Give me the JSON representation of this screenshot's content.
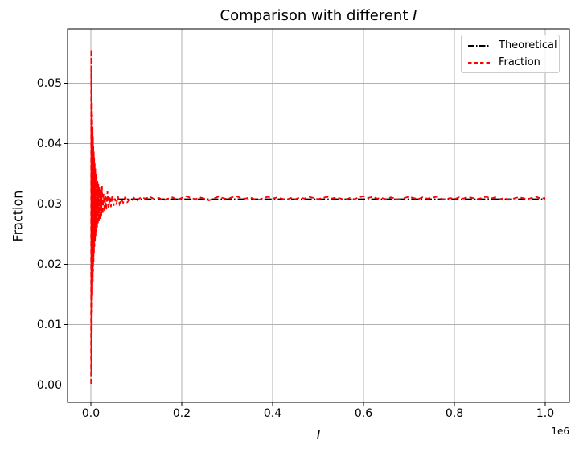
{
  "figure": {
    "title": {
      "prefix": "Comparison with different ",
      "math": "I"
    },
    "xlabel_math": "I",
    "ylabel": "Fraction",
    "offset_text": "1e6"
  },
  "legend": {
    "position": "upper right",
    "items": [
      {
        "label": "Theoretical",
        "color": "#000000",
        "linestyle": "dashdot"
      },
      {
        "label": "Fraction",
        "color": "#ff0000",
        "linestyle": "dashed"
      }
    ]
  },
  "chart_data": {
    "type": "line",
    "title": "Comparison with different I",
    "xlabel": "I",
    "ylabel": "Fraction",
    "x_offset_factor": "1e6",
    "grid": true,
    "grid_color": "#b0b0b0",
    "background": "#ffffff",
    "spine_color": "#000000",
    "legend_position": "upper right",
    "xlim": [
      -51300,
      1053100
    ],
    "ylim": [
      -0.002866,
      0.059
    ],
    "xticks": {
      "values": [
        0,
        200000,
        400000,
        600000,
        800000,
        1000000
      ],
      "labels": [
        "0.0",
        "0.2",
        "0.4",
        "0.6",
        "0.8",
        "1.0"
      ]
    },
    "yticks": {
      "values": [
        0.0,
        0.01,
        0.02,
        0.03,
        0.04,
        0.05
      ],
      "labels": [
        "0.00",
        "0.01",
        "0.02",
        "0.03",
        "0.04",
        "0.05"
      ]
    },
    "series": [
      {
        "name": "Theoretical",
        "color": "#000000",
        "linestyle": "dashdot",
        "linewidth": 1.7,
        "points": [
          [
            0,
            0.0308
          ],
          [
            1000000,
            0.0308
          ]
        ]
      },
      {
        "name": "Fraction",
        "color": "#ff0000",
        "linestyle": "dashed",
        "linewidth": 1.8,
        "points": [
          [
            400,
            0.0002
          ],
          [
            700,
            0.0556
          ],
          [
            1000,
            0.0015
          ],
          [
            1300,
            0.052
          ],
          [
            1600,
            0.0045
          ],
          [
            1900,
            0.0495
          ],
          [
            2200,
            0.0085
          ],
          [
            2500,
            0.0468
          ],
          [
            2800,
            0.012
          ],
          [
            3100,
            0.0448
          ],
          [
            3500,
            0.0148
          ],
          [
            3900,
            0.0428
          ],
          [
            4300,
            0.017
          ],
          [
            4700,
            0.0412
          ],
          [
            5100,
            0.0188
          ],
          [
            5500,
            0.0398
          ],
          [
            6000,
            0.0204
          ],
          [
            6500,
            0.0387
          ],
          [
            7000,
            0.0218
          ],
          [
            7500,
            0.0377
          ],
          [
            8000,
            0.0229
          ],
          [
            8600,
            0.0367
          ],
          [
            9200,
            0.0239
          ],
          [
            9800,
            0.0359
          ],
          [
            10500,
            0.0247
          ],
          [
            11200,
            0.0351
          ],
          [
            12000,
            0.0254
          ],
          [
            12800,
            0.0344
          ],
          [
            13700,
            0.0261
          ],
          [
            14600,
            0.0338
          ],
          [
            15600,
            0.0266
          ],
          [
            16600,
            0.0333
          ],
          [
            17700,
            0.0271
          ],
          [
            18800,
            0.0328
          ],
          [
            20000,
            0.0275
          ],
          [
            21500,
            0.0324
          ],
          [
            23000,
            0.0279
          ],
          [
            24500,
            0.033
          ],
          [
            26000,
            0.0283
          ],
          [
            28000,
            0.0317
          ],
          [
            30000,
            0.0287
          ],
          [
            32000,
            0.0314
          ],
          [
            34000,
            0.029
          ],
          [
            36500,
            0.0321
          ],
          [
            39000,
            0.0293
          ],
          [
            41500,
            0.0311
          ],
          [
            44000,
            0.0295
          ],
          [
            47000,
            0.0315
          ],
          [
            50000,
            0.0297
          ],
          [
            53000,
            0.0309
          ],
          [
            56000,
            0.0299
          ],
          [
            59500,
            0.0313
          ],
          [
            63000,
            0.03
          ],
          [
            67000,
            0.0308
          ],
          [
            71000,
            0.0302
          ],
          [
            75500,
            0.0312
          ],
          [
            80000,
            0.0303
          ],
          [
            85000,
            0.0307
          ],
          [
            90000,
            0.0304
          ],
          [
            95000,
            0.031
          ],
          [
            100000,
            0.0305
          ],
          [
            110000,
            0.0311
          ],
          [
            120000,
            0.0309
          ],
          [
            130000,
            0.0312
          ],
          [
            140000,
            0.0308
          ],
          [
            150000,
            0.031
          ],
          [
            160000,
            0.0306
          ],
          [
            170000,
            0.0309
          ],
          [
            180000,
            0.0311
          ],
          [
            190000,
            0.0307
          ],
          [
            200000,
            0.031
          ],
          [
            210000,
            0.0313
          ],
          [
            220000,
            0.031
          ],
          [
            230000,
            0.0308
          ],
          [
            240000,
            0.0311
          ],
          [
            250000,
            0.0309
          ],
          [
            260000,
            0.0306
          ],
          [
            270000,
            0.0309
          ],
          [
            280000,
            0.0312
          ],
          [
            290000,
            0.031
          ],
          [
            300000,
            0.0308
          ],
          [
            310000,
            0.0311
          ],
          [
            320000,
            0.0313
          ],
          [
            330000,
            0.031
          ],
          [
            340000,
            0.0309
          ],
          [
            350000,
            0.0311
          ],
          [
            360000,
            0.0308
          ],
          [
            370000,
            0.0307
          ],
          [
            380000,
            0.031
          ],
          [
            390000,
            0.0312
          ],
          [
            400000,
            0.0309
          ],
          [
            410000,
            0.0311
          ],
          [
            420000,
            0.0309
          ],
          [
            430000,
            0.0307
          ],
          [
            440000,
            0.031
          ],
          [
            450000,
            0.0308
          ],
          [
            460000,
            0.0311
          ],
          [
            470000,
            0.0309
          ],
          [
            480000,
            0.0312
          ],
          [
            490000,
            0.031
          ],
          [
            500000,
            0.0308
          ],
          [
            510000,
            0.031
          ],
          [
            520000,
            0.0312
          ],
          [
            530000,
            0.0309
          ],
          [
            540000,
            0.0311
          ],
          [
            550000,
            0.0309
          ],
          [
            560000,
            0.0307
          ],
          [
            570000,
            0.031
          ],
          [
            580000,
            0.0308
          ],
          [
            590000,
            0.0311
          ],
          [
            600000,
            0.0313
          ],
          [
            610000,
            0.031
          ],
          [
            620000,
            0.0312
          ],
          [
            630000,
            0.0309
          ],
          [
            640000,
            0.031
          ],
          [
            650000,
            0.0308
          ],
          [
            660000,
            0.0311
          ],
          [
            670000,
            0.0309
          ],
          [
            680000,
            0.0307
          ],
          [
            690000,
            0.031
          ],
          [
            700000,
            0.0312
          ],
          [
            710000,
            0.031
          ],
          [
            720000,
            0.0308
          ],
          [
            730000,
            0.0311
          ],
          [
            740000,
            0.0309
          ],
          [
            750000,
            0.031
          ],
          [
            760000,
            0.0312
          ],
          [
            770000,
            0.0309
          ],
          [
            780000,
            0.0307
          ],
          [
            790000,
            0.031
          ],
          [
            800000,
            0.0308
          ],
          [
            810000,
            0.0311
          ],
          [
            820000,
            0.0309
          ],
          [
            830000,
            0.0312
          ],
          [
            840000,
            0.031
          ],
          [
            850000,
            0.0308
          ],
          [
            860000,
            0.031
          ],
          [
            870000,
            0.0312
          ],
          [
            880000,
            0.0309
          ],
          [
            890000,
            0.0311
          ],
          [
            900000,
            0.0308
          ],
          [
            910000,
            0.031
          ],
          [
            920000,
            0.0307
          ],
          [
            930000,
            0.0309
          ],
          [
            940000,
            0.0311
          ],
          [
            950000,
            0.031
          ],
          [
            960000,
            0.0308
          ],
          [
            970000,
            0.031
          ],
          [
            980000,
            0.0312
          ],
          [
            990000,
            0.0309
          ],
          [
            1000000,
            0.031
          ]
        ]
      }
    ]
  }
}
